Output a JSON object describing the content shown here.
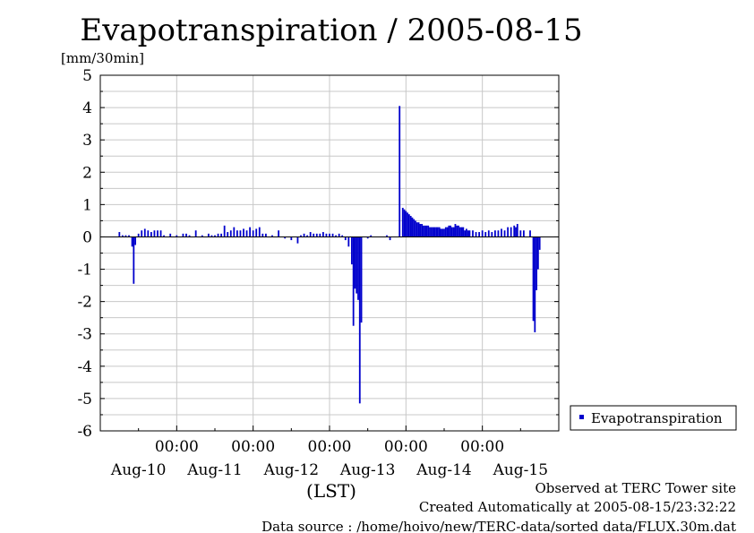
{
  "chart_data": {
    "type": "bar",
    "title": "Evapotranspiration / 2005-08-15",
    "ylabel": "[mm/30min]",
    "xlabel": "(LST)",
    "ylim": [
      -6,
      5
    ],
    "yticks": [
      5,
      4,
      3,
      2,
      1,
      0,
      -1,
      -2,
      -3,
      -4,
      -5,
      -6
    ],
    "xlim": [
      0,
      144
    ],
    "time_labels": [
      "00:00",
      "00:00",
      "00:00",
      "00:00",
      "00:00"
    ],
    "day_labels": [
      "Aug-10",
      "Aug-11",
      "Aug-12",
      "Aug-13",
      "Aug-14",
      "Aug-15"
    ],
    "series": [
      {
        "name": "Evapotranspiration",
        "color": "#0000cc",
        "points": [
          [
            6,
            0.15
          ],
          [
            7,
            0.05
          ],
          [
            8,
            0.05
          ],
          [
            9,
            0.05
          ],
          [
            10,
            -0.3
          ],
          [
            10.5,
            -1.45
          ],
          [
            11,
            -0.25
          ],
          [
            12,
            0.1
          ],
          [
            13,
            0.2
          ],
          [
            14,
            0.25
          ],
          [
            15,
            0.2
          ],
          [
            16,
            0.15
          ],
          [
            17,
            0.2
          ],
          [
            18,
            0.2
          ],
          [
            19,
            0.2
          ],
          [
            20,
            0.05
          ],
          [
            22,
            0.1
          ],
          [
            24,
            0.05
          ],
          [
            26,
            0.1
          ],
          [
            27,
            0.1
          ],
          [
            28,
            0.05
          ],
          [
            30,
            0.2
          ],
          [
            32,
            0.05
          ],
          [
            34,
            0.1
          ],
          [
            35,
            0.05
          ],
          [
            36,
            0.05
          ],
          [
            37,
            0.1
          ],
          [
            38,
            0.1
          ],
          [
            39,
            0.35
          ],
          [
            40,
            0.15
          ],
          [
            41,
            0.2
          ],
          [
            42,
            0.3
          ],
          [
            43,
            0.2
          ],
          [
            44,
            0.2
          ],
          [
            45,
            0.25
          ],
          [
            46,
            0.2
          ],
          [
            47,
            0.3
          ],
          [
            48,
            0.2
          ],
          [
            49,
            0.25
          ],
          [
            50,
            0.3
          ],
          [
            51,
            0.1
          ],
          [
            52,
            0.1
          ],
          [
            54,
            0.05
          ],
          [
            56,
            0.2
          ],
          [
            58,
            -0.05
          ],
          [
            60,
            -0.1
          ],
          [
            62,
            -0.2
          ],
          [
            63,
            0.05
          ],
          [
            64,
            0.1
          ],
          [
            65,
            0.05
          ],
          [
            66,
            0.15
          ],
          [
            67,
            0.1
          ],
          [
            68,
            0.1
          ],
          [
            69,
            0.1
          ],
          [
            70,
            0.15
          ],
          [
            71,
            0.1
          ],
          [
            72,
            0.1
          ],
          [
            73,
            0.1
          ],
          [
            74,
            0.05
          ],
          [
            75,
            0.1
          ],
          [
            76,
            0.05
          ],
          [
            77,
            -0.1
          ],
          [
            78,
            -0.3
          ],
          [
            79,
            -0.85
          ],
          [
            79.5,
            -2.75
          ],
          [
            80,
            -1.6
          ],
          [
            80.5,
            -1.75
          ],
          [
            81,
            -1.95
          ],
          [
            81.5,
            -5.15
          ],
          [
            82,
            -2.65
          ],
          [
            84,
            -0.05
          ],
          [
            85,
            0.05
          ],
          [
            90,
            0.05
          ],
          [
            91,
            -0.1
          ],
          [
            94,
            4.05
          ],
          [
            95,
            0.9
          ],
          [
            95.5,
            0.85
          ],
          [
            96,
            0.8
          ],
          [
            96.5,
            0.75
          ],
          [
            97,
            0.7
          ],
          [
            97.5,
            0.65
          ],
          [
            98,
            0.6
          ],
          [
            98.5,
            0.55
          ],
          [
            99,
            0.5
          ],
          [
            99.5,
            0.45
          ],
          [
            100,
            0.45
          ],
          [
            100.5,
            0.4
          ],
          [
            101,
            0.4
          ],
          [
            101.5,
            0.35
          ],
          [
            102,
            0.35
          ],
          [
            102.5,
            0.35
          ],
          [
            103,
            0.35
          ],
          [
            103.5,
            0.3
          ],
          [
            104,
            0.3
          ],
          [
            104.5,
            0.3
          ],
          [
            105,
            0.3
          ],
          [
            105.5,
            0.3
          ],
          [
            106,
            0.3
          ],
          [
            106.5,
            0.3
          ],
          [
            107,
            0.25
          ],
          [
            107.5,
            0.25
          ],
          [
            108,
            0.25
          ],
          [
            108.5,
            0.3
          ],
          [
            109,
            0.3
          ],
          [
            109.5,
            0.35
          ],
          [
            110,
            0.35
          ],
          [
            110.5,
            0.3
          ],
          [
            111,
            0.3
          ],
          [
            111.5,
            0.4
          ],
          [
            112,
            0.35
          ],
          [
            112.5,
            0.35
          ],
          [
            113,
            0.3
          ],
          [
            113.5,
            0.3
          ],
          [
            114,
            0.3
          ],
          [
            114.5,
            0.2
          ],
          [
            115,
            0.25
          ],
          [
            115.5,
            0.2
          ],
          [
            116,
            0.2
          ],
          [
            117,
            0.2
          ],
          [
            118,
            0.15
          ],
          [
            119,
            0.15
          ],
          [
            120,
            0.2
          ],
          [
            121,
            0.15
          ],
          [
            122,
            0.2
          ],
          [
            123,
            0.15
          ],
          [
            124,
            0.2
          ],
          [
            125,
            0.2
          ],
          [
            126,
            0.25
          ],
          [
            127,
            0.2
          ],
          [
            128,
            0.3
          ],
          [
            129,
            0.3
          ],
          [
            130,
            0.35
          ],
          [
            130.5,
            0.3
          ],
          [
            131,
            0.4
          ],
          [
            132,
            0.2
          ],
          [
            133,
            0.2
          ],
          [
            135,
            0.2
          ],
          [
            136,
            -2.6
          ],
          [
            136.5,
            -2.95
          ],
          [
            137,
            -1.65
          ],
          [
            137.5,
            -1.0
          ],
          [
            138,
            -0.4
          ]
        ]
      }
    ],
    "grid": true,
    "legend_position": "right"
  },
  "footer": {
    "line1": "Observed at TERC Tower site",
    "line2": "Created Automatically at 2005-08-15/23:32:22",
    "line3": "Data source : /home/hoivo/new/TERC-data/sorted  data/FLUX.30m.dat"
  }
}
